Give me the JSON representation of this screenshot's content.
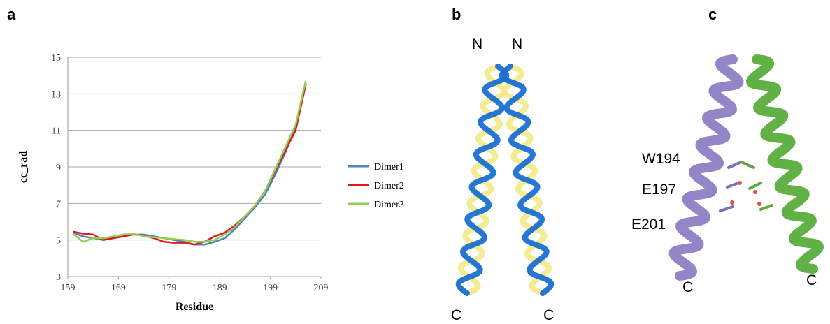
{
  "panel_labels": [
    "a",
    "b",
    "c"
  ],
  "chart_data": {
    "type": "line",
    "x_label": "Residue",
    "y_label": "cc_rad",
    "x": [
      160,
      162,
      164,
      166,
      168,
      170,
      172,
      174,
      176,
      178,
      180,
      182,
      184,
      186,
      188,
      190,
      192,
      194,
      196,
      198,
      200,
      202,
      204,
      206
    ],
    "series": [
      {
        "name": "Dimer1",
        "color": "#4f81bd",
        "values": [
          5.4,
          5.2,
          5.1,
          5.0,
          5.1,
          5.2,
          5.3,
          5.3,
          5.2,
          5.1,
          5.0,
          4.9,
          4.75,
          4.75,
          4.9,
          5.1,
          5.6,
          6.2,
          6.8,
          7.5,
          8.6,
          9.8,
          11.2,
          13.6
        ]
      },
      {
        "name": "Dimer2",
        "color": "#e31a1c",
        "values": [
          5.45,
          5.35,
          5.3,
          5.0,
          5.1,
          5.2,
          5.3,
          5.25,
          5.1,
          4.9,
          4.85,
          4.85,
          4.75,
          4.9,
          5.2,
          5.4,
          5.8,
          6.3,
          6.9,
          7.7,
          8.8,
          9.9,
          11.0,
          13.5
        ]
      },
      {
        "name": "Dimer3",
        "color": "#8fd14f",
        "values": [
          5.35,
          4.9,
          5.1,
          5.1,
          5.2,
          5.3,
          5.35,
          5.2,
          5.15,
          5.1,
          5.05,
          5.0,
          4.9,
          4.9,
          5.0,
          5.3,
          5.7,
          6.3,
          6.9,
          7.7,
          8.9,
          10.1,
          11.3,
          13.7
        ]
      }
    ],
    "xlim": [
      159,
      209
    ],
    "xticks": [
      159,
      169,
      179,
      189,
      199,
      209
    ],
    "ylim": [
      3,
      15
    ],
    "yticks": [
      3,
      5,
      7,
      9,
      11,
      13,
      15
    ],
    "grid": true,
    "legend": "right"
  },
  "panel_b": {
    "terminus_labels": [
      "N",
      "N",
      "C",
      "C"
    ]
  },
  "panel_c": {
    "residue_labels": [
      "W194",
      "E197",
      "E201"
    ],
    "terminus_labels": [
      "C",
      "C"
    ]
  }
}
